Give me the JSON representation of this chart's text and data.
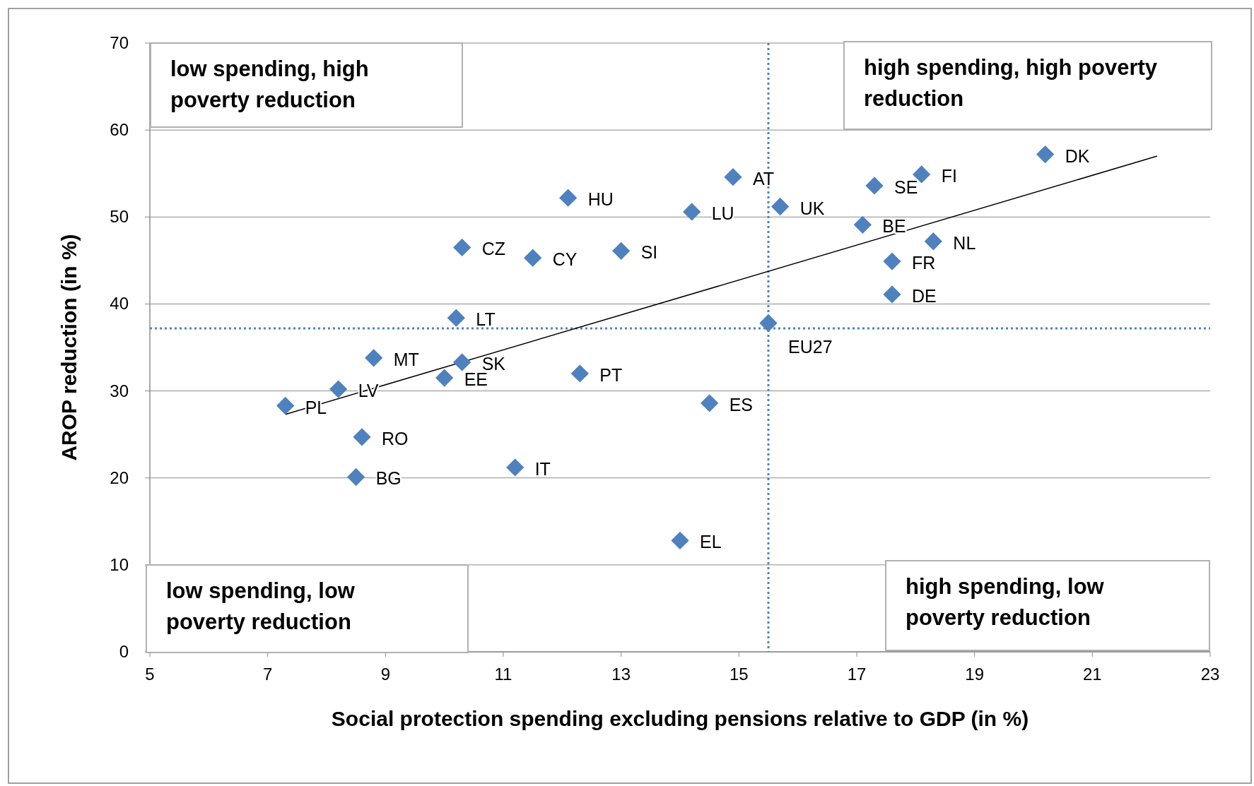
{
  "chart_data": {
    "type": "scatter",
    "xlabel": "Social protection spending excluding pensions relative to GDP (in %)",
    "ylabel": "AROP reduction (in %)",
    "xlim": [
      5,
      23
    ],
    "xticks": [
      5,
      7,
      9,
      11,
      13,
      15,
      17,
      19,
      21,
      23
    ],
    "ylim": [
      0,
      70
    ],
    "yticks": [
      0,
      10,
      20,
      30,
      40,
      50,
      60,
      70
    ],
    "grid": "y",
    "marker": "diamond",
    "series": [
      {
        "name": "DK",
        "color": "#4f81bd",
        "x": [
          20.2
        ],
        "values": [
          57.2
        ]
      },
      {
        "name": "FI",
        "color": "#4f81bd",
        "x": [
          18.1
        ],
        "values": [
          54.9
        ]
      },
      {
        "name": "SE",
        "color": "#4f81bd",
        "x": [
          17.3
        ],
        "values": [
          53.6
        ]
      },
      {
        "name": "AT",
        "color": "#4f81bd",
        "x": [
          14.9
        ],
        "values": [
          54.6
        ]
      },
      {
        "name": "HU",
        "color": "#4f81bd",
        "x": [
          12.1
        ],
        "values": [
          52.2
        ]
      },
      {
        "name": "LU",
        "color": "#4f81bd",
        "x": [
          14.2
        ],
        "values": [
          50.6
        ]
      },
      {
        "name": "UK",
        "color": "#4f81bd",
        "x": [
          15.7
        ],
        "values": [
          51.2
        ]
      },
      {
        "name": "BE",
        "color": "#4f81bd",
        "x": [
          17.1
        ],
        "values": [
          49.1
        ]
      },
      {
        "name": "NL",
        "color": "#4f81bd",
        "x": [
          18.3
        ],
        "values": [
          47.2
        ]
      },
      {
        "name": "CZ",
        "color": "#4f81bd",
        "x": [
          10.3
        ],
        "values": [
          46.5
        ]
      },
      {
        "name": "CY",
        "color": "#4f81bd",
        "x": [
          11.5
        ],
        "values": [
          45.3
        ]
      },
      {
        "name": "SI",
        "color": "#4f81bd",
        "x": [
          13.0
        ],
        "values": [
          46.1
        ]
      },
      {
        "name": "FR",
        "color": "#4f81bd",
        "x": [
          17.6
        ],
        "values": [
          44.9
        ]
      },
      {
        "name": "DE",
        "color": "#4f81bd",
        "x": [
          17.6
        ],
        "values": [
          41.1
        ]
      },
      {
        "name": "LT",
        "color": "#4f81bd",
        "x": [
          10.2
        ],
        "values": [
          38.4
        ]
      },
      {
        "name": "EU27",
        "color": "#4f81bd",
        "x": [
          15.5
        ],
        "values": [
          37.8
        ]
      },
      {
        "name": "MT",
        "color": "#4f81bd",
        "x": [
          8.8
        ],
        "values": [
          33.8
        ]
      },
      {
        "name": "SK",
        "color": "#4f81bd",
        "x": [
          10.3
        ],
        "values": [
          33.3
        ]
      },
      {
        "name": "EE",
        "color": "#4f81bd",
        "x": [
          10.0
        ],
        "values": [
          31.5
        ]
      },
      {
        "name": "PT",
        "color": "#4f81bd",
        "x": [
          12.3
        ],
        "values": [
          32.0
        ]
      },
      {
        "name": "LV",
        "color": "#4f81bd",
        "x": [
          8.2
        ],
        "values": [
          30.2
        ]
      },
      {
        "name": "PL",
        "color": "#4f81bd",
        "x": [
          7.3
        ],
        "values": [
          28.3
        ]
      },
      {
        "name": "ES",
        "color": "#4f81bd",
        "x": [
          14.5
        ],
        "values": [
          28.6
        ]
      },
      {
        "name": "RO",
        "color": "#4f81bd",
        "x": [
          8.6
        ],
        "values": [
          24.7
        ]
      },
      {
        "name": "IT",
        "color": "#4f81bd",
        "x": [
          11.2
        ],
        "values": [
          21.2
        ]
      },
      {
        "name": "BG",
        "color": "#4f81bd",
        "x": [
          8.5
        ],
        "values": [
          20.1
        ]
      },
      {
        "name": "EL",
        "color": "#4f81bd",
        "x": [
          14.0
        ],
        "values": [
          12.8
        ]
      },
      {
        "type": "line",
        "marker": "none",
        "color": "#000000",
        "x": [
          7.3,
          22.1
        ],
        "values": [
          27.3,
          57.0
        ]
      }
    ],
    "ref_lines": [
      {
        "axis": "x",
        "value": 15.5,
        "color": "#4f81bd",
        "line_style": "dotted"
      },
      {
        "axis": "y",
        "value": 37.2,
        "color": "#4f81bd",
        "line_style": "dotted"
      }
    ],
    "annotations": [
      "low spending, high poverty reduction",
      "high spending, high poverty reduction",
      "low spending, low poverty reduction",
      "high spending, low poverty reduction"
    ]
  }
}
